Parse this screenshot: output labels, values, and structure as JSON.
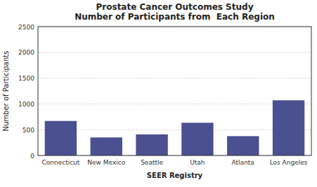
{
  "chart_data": {
    "type": "bar",
    "title": "Prostate Cancer Outcomes Study\nNumber of Participants from  Each Region",
    "xlabel": "SEER Registry",
    "ylabel": "Number of Participants",
    "categories": [
      "Connecticut",
      "New Mexico",
      "Seattle",
      "Utah",
      "Atlanta",
      "Los Angeles"
    ],
    "values": [
      670,
      350,
      410,
      635,
      375,
      1070
    ],
    "color": "#4B5090",
    "ylim": [
      0,
      2500
    ],
    "yticks": [
      0,
      500,
      1000,
      1500,
      2000,
      2500
    ],
    "grid": true
  }
}
